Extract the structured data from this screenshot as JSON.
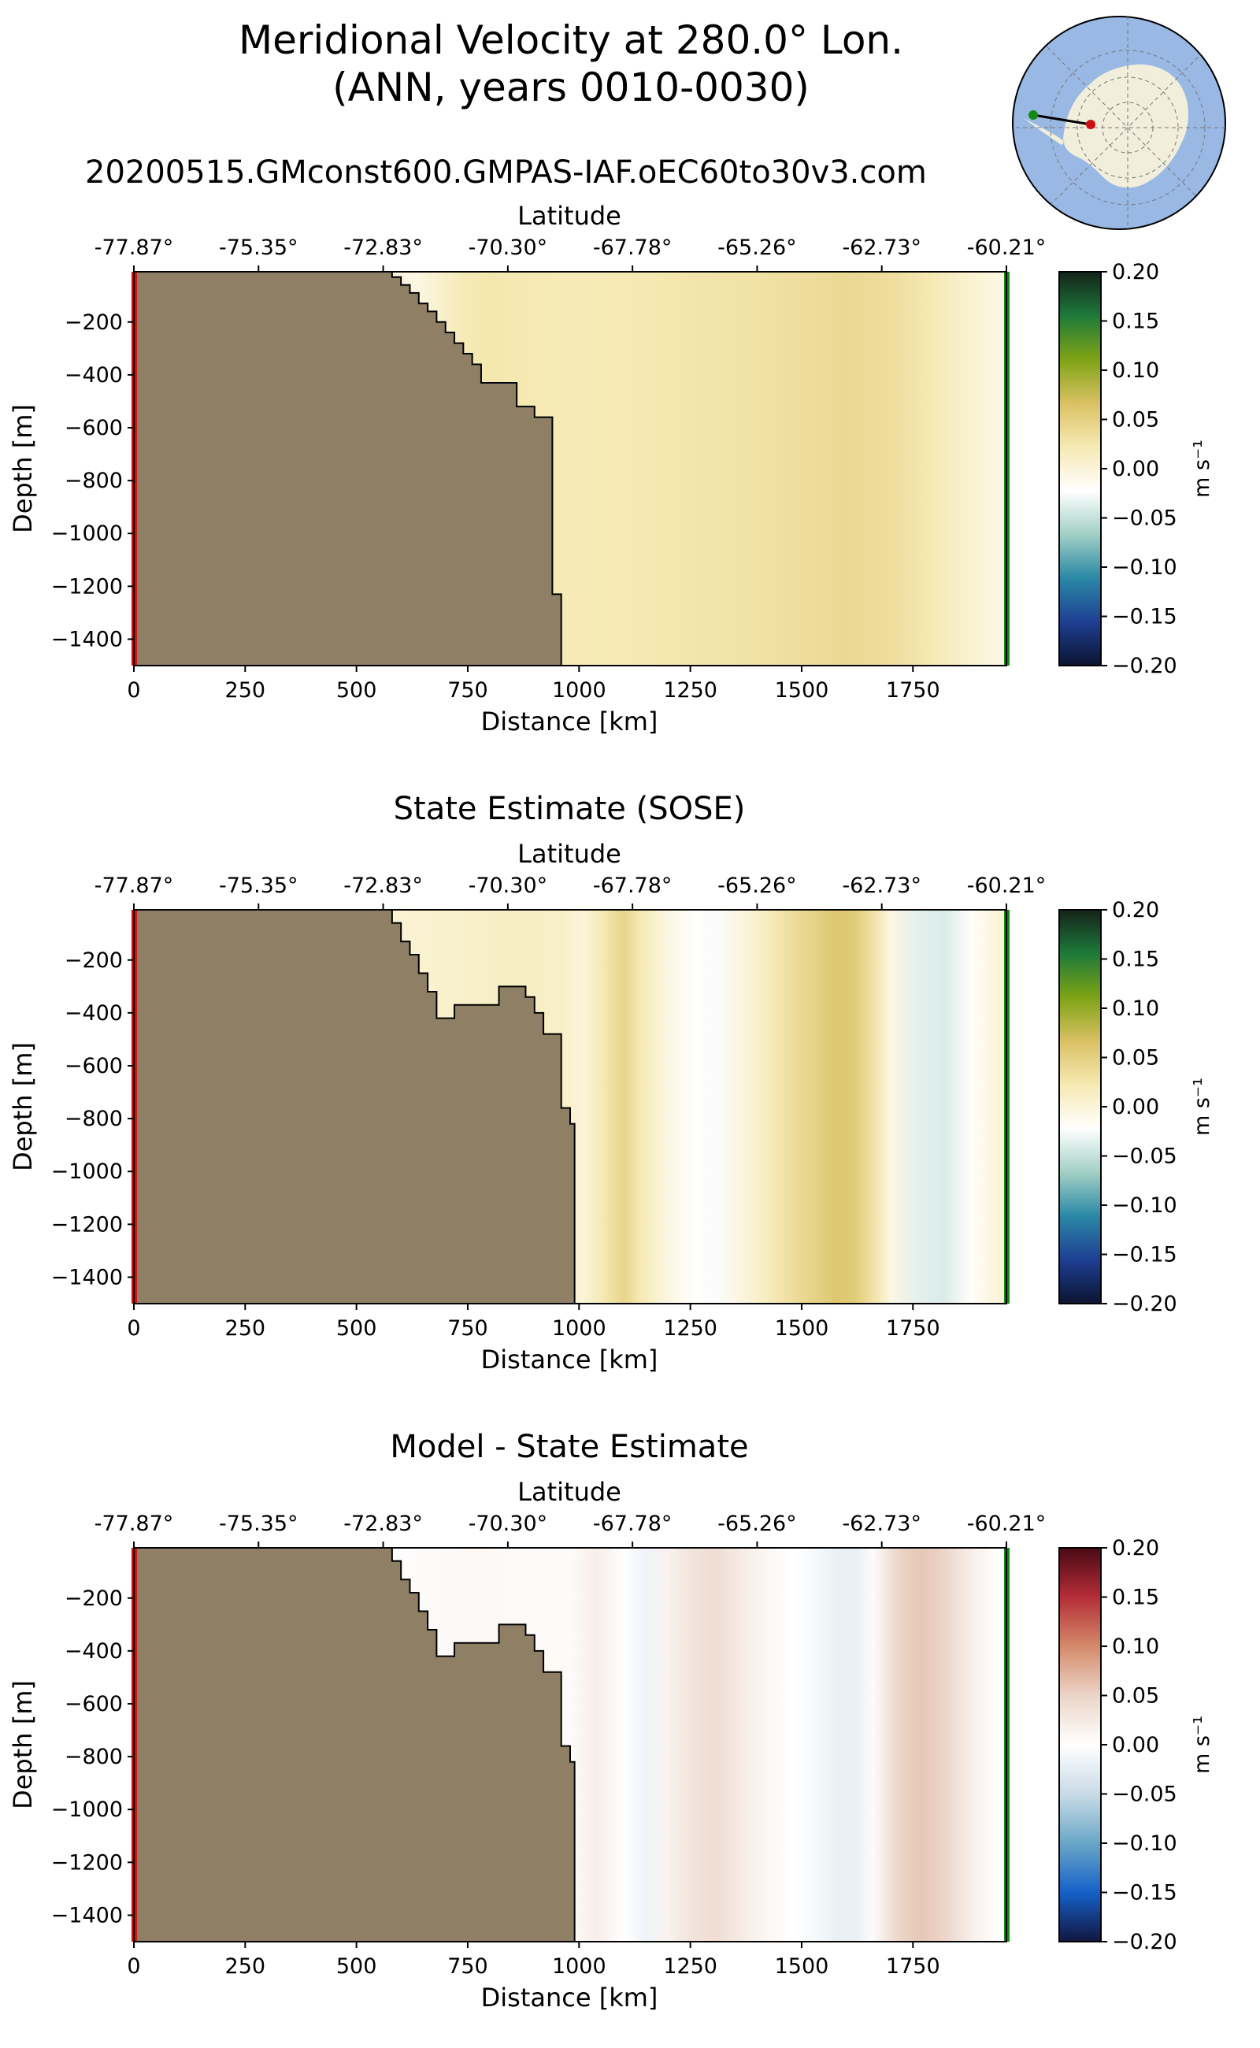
{
  "figure": {
    "title_line1": "Meridional Velocity at 280.0° Lon.",
    "title_line2": "(ANN, years 0010-0030)",
    "run_name": "20200515.GMconst600.GMPAS-IAF.oEC60to30v3.com"
  },
  "colors": {
    "land": "#8e7f65",
    "transect_start": "#cc1111",
    "transect_end": "#138a13",
    "ocean_map": "#99b8e3",
    "continent_map": "#f1efdc",
    "cmap_velocity": [
      "#0b1430",
      "#1e3f93",
      "#2a88a6",
      "#a2d0c5",
      "#ffffff",
      "#f6e9b3",
      "#d9c163",
      "#7ea314",
      "#1d7a3a",
      "#14231a"
    ],
    "cmap_difference": [
      "#12163f",
      "#1561c8",
      "#6aa7c7",
      "#c9dbe6",
      "#ffffff",
      "#ecd5c8",
      "#d48a6a",
      "#b42d37",
      "#4a0a15"
    ]
  },
  "inset_map": {
    "icon": "antarctica-polar-map-icon"
  },
  "chart_data": [
    {
      "type": "heatmap",
      "title": "",
      "xlabel": "Distance [km]",
      "ylabel": "Depth [m]",
      "top_axis_label": "Latitude",
      "xlim": [
        0,
        1960
      ],
      "ylim": [
        -1500,
        -10
      ],
      "x_ticks": [
        0,
        250,
        500,
        750,
        1000,
        1250,
        1500,
        1750
      ],
      "x_tick_labels": [
        "0",
        "250",
        "500",
        "750",
        "1000",
        "1250",
        "1500",
        "1750"
      ],
      "y_ticks": [
        -200,
        -400,
        -600,
        -800,
        -1000,
        -1200,
        -1400
      ],
      "y_tick_labels": [
        "−200",
        "−400",
        "−600",
        "−800",
        "−1000",
        "−1200",
        "−1400"
      ],
      "top_ticks_km": [
        0,
        280,
        560,
        840,
        1120,
        1400,
        1680,
        1960
      ],
      "top_tick_labels": [
        "-77.87°",
        "-75.35°",
        "-72.83°",
        "-70.30°",
        "-67.78°",
        "-65.26°",
        "-62.73°",
        "-60.21°"
      ],
      "colorbar": {
        "min": -0.2,
        "max": 0.2,
        "ticks": [
          "0.20",
          "0.15",
          "0.10",
          "0.05",
          "0.00",
          "−0.05",
          "−0.10",
          "−0.15",
          "−0.20"
        ],
        "label": "m s⁻¹",
        "cmap": "velocity"
      },
      "columns_km": [
        560,
        640,
        740,
        800,
        900,
        1000,
        1100,
        1200,
        1300,
        1400,
        1500,
        1600,
        1700,
        1800,
        1880,
        1940
      ],
      "column_values": [
        0.0,
        -0.005,
        0.02,
        0.025,
        0.022,
        0.02,
        0.022,
        0.025,
        0.028,
        0.03,
        0.035,
        0.04,
        0.035,
        0.02,
        0.005,
        -0.005
      ],
      "bathymetry_km": [
        0,
        560,
        580,
        600,
        620,
        640,
        660,
        680,
        700,
        720,
        740,
        760,
        780,
        800,
        840,
        860,
        880,
        900,
        920,
        940,
        960
      ],
      "bathymetry_depth": [
        -10,
        -10,
        -30,
        -60,
        -90,
        -130,
        -160,
        -200,
        -240,
        -280,
        -320,
        -360,
        -430,
        -430,
        -430,
        -520,
        -520,
        -560,
        -560,
        -1230,
        -1450
      ]
    },
    {
      "type": "heatmap",
      "title": "State Estimate (SOSE)",
      "xlabel": "Distance [km]",
      "ylabel": "Depth [m]",
      "top_axis_label": "Latitude",
      "xlim": [
        0,
        1960
      ],
      "ylim": [
        -1500,
        -10
      ],
      "x_ticks": [
        0,
        250,
        500,
        750,
        1000,
        1250,
        1500,
        1750
      ],
      "x_tick_labels": [
        "0",
        "250",
        "500",
        "750",
        "1000",
        "1250",
        "1500",
        "1750"
      ],
      "y_ticks": [
        -200,
        -400,
        -600,
        -800,
        -1000,
        -1200,
        -1400
      ],
      "y_tick_labels": [
        "−200",
        "−400",
        "−600",
        "−800",
        "−1000",
        "−1200",
        "−1400"
      ],
      "top_ticks_km": [
        0,
        280,
        560,
        840,
        1120,
        1400,
        1680,
        1960
      ],
      "top_tick_labels": [
        "-77.87°",
        "-75.35°",
        "-72.83°",
        "-70.30°",
        "-67.78°",
        "-65.26°",
        "-62.73°",
        "-60.21°"
      ],
      "colorbar": {
        "min": -0.2,
        "max": 0.2,
        "ticks": [
          "0.20",
          "0.15",
          "0.10",
          "0.05",
          "0.00",
          "−0.05",
          "−0.10",
          "−0.15",
          "−0.20"
        ],
        "label": "m s⁻¹",
        "cmap": "velocity"
      },
      "columns_km": [
        560,
        640,
        740,
        840,
        960,
        1010,
        1060,
        1100,
        1140,
        1200,
        1260,
        1310,
        1360,
        1420,
        1480,
        1540,
        1580,
        1620,
        1660,
        1700,
        1760,
        1820,
        1880,
        1940
      ],
      "column_values": [
        0.0,
        0.005,
        0.008,
        0.012,
        0.01,
        0.0,
        0.025,
        0.045,
        0.02,
        -0.005,
        -0.02,
        -0.025,
        -0.005,
        0.015,
        0.035,
        0.05,
        0.06,
        0.055,
        0.03,
        -0.005,
        -0.035,
        -0.04,
        -0.02,
        0.0
      ],
      "bathymetry_km": [
        0,
        560,
        580,
        600,
        620,
        640,
        660,
        680,
        700,
        720,
        760,
        800,
        820,
        860,
        880,
        900,
        920,
        960,
        980,
        990
      ],
      "bathymetry_depth": [
        -10,
        -10,
        -60,
        -130,
        -180,
        -250,
        -320,
        -420,
        -420,
        -370,
        -370,
        -370,
        -300,
        -300,
        -340,
        -400,
        -480,
        -760,
        -820,
        -1450
      ]
    },
    {
      "type": "heatmap",
      "title": "Model - State Estimate",
      "xlabel": "Distance [km]",
      "ylabel": "Depth [m]",
      "top_axis_label": "Latitude",
      "xlim": [
        0,
        1960
      ],
      "ylim": [
        -1500,
        -10
      ],
      "x_ticks": [
        0,
        250,
        500,
        750,
        1000,
        1250,
        1500,
        1750
      ],
      "x_tick_labels": [
        "0",
        "250",
        "500",
        "750",
        "1000",
        "1250",
        "1500",
        "1750"
      ],
      "y_ticks": [
        -200,
        -400,
        -600,
        -800,
        -1000,
        -1200,
        -1400
      ],
      "y_tick_labels": [
        "−200",
        "−400",
        "−600",
        "−800",
        "−1000",
        "−1200",
        "−1400"
      ],
      "top_ticks_km": [
        0,
        280,
        560,
        840,
        1120,
        1400,
        1680,
        1960
      ],
      "top_tick_labels": [
        "-77.87°",
        "-75.35°",
        "-72.83°",
        "-70.30°",
        "-67.78°",
        "-65.26°",
        "-62.73°",
        "-60.21°"
      ],
      "colorbar": {
        "min": -0.2,
        "max": 0.2,
        "ticks": [
          "0.20",
          "0.15",
          "0.10",
          "0.05",
          "0.00",
          "−0.05",
          "−0.10",
          "−0.15",
          "−0.20"
        ],
        "label": "m s⁻¹",
        "cmap": "difference"
      },
      "columns_km": [
        560,
        640,
        760,
        860,
        980,
        1040,
        1100,
        1150,
        1200,
        1260,
        1310,
        1360,
        1420,
        1480,
        1540,
        1580,
        1620,
        1660,
        1720,
        1770,
        1820,
        1880,
        1940
      ],
      "column_values": [
        0.0,
        0.005,
        0.008,
        0.006,
        0.005,
        0.02,
        0.0,
        -0.015,
        0.015,
        0.035,
        0.04,
        0.025,
        0.01,
        0.0,
        -0.01,
        -0.02,
        -0.02,
        0.005,
        0.05,
        0.06,
        0.05,
        0.02,
        0.0
      ],
      "bathymetry_km": [
        0,
        560,
        580,
        600,
        620,
        640,
        660,
        680,
        700,
        720,
        760,
        800,
        820,
        860,
        880,
        900,
        920,
        960,
        980,
        990
      ],
      "bathymetry_depth": [
        -10,
        -10,
        -60,
        -130,
        -180,
        -250,
        -320,
        -420,
        -420,
        -370,
        -370,
        -370,
        -300,
        -300,
        -340,
        -400,
        -480,
        -760,
        -820,
        -1450
      ]
    }
  ]
}
